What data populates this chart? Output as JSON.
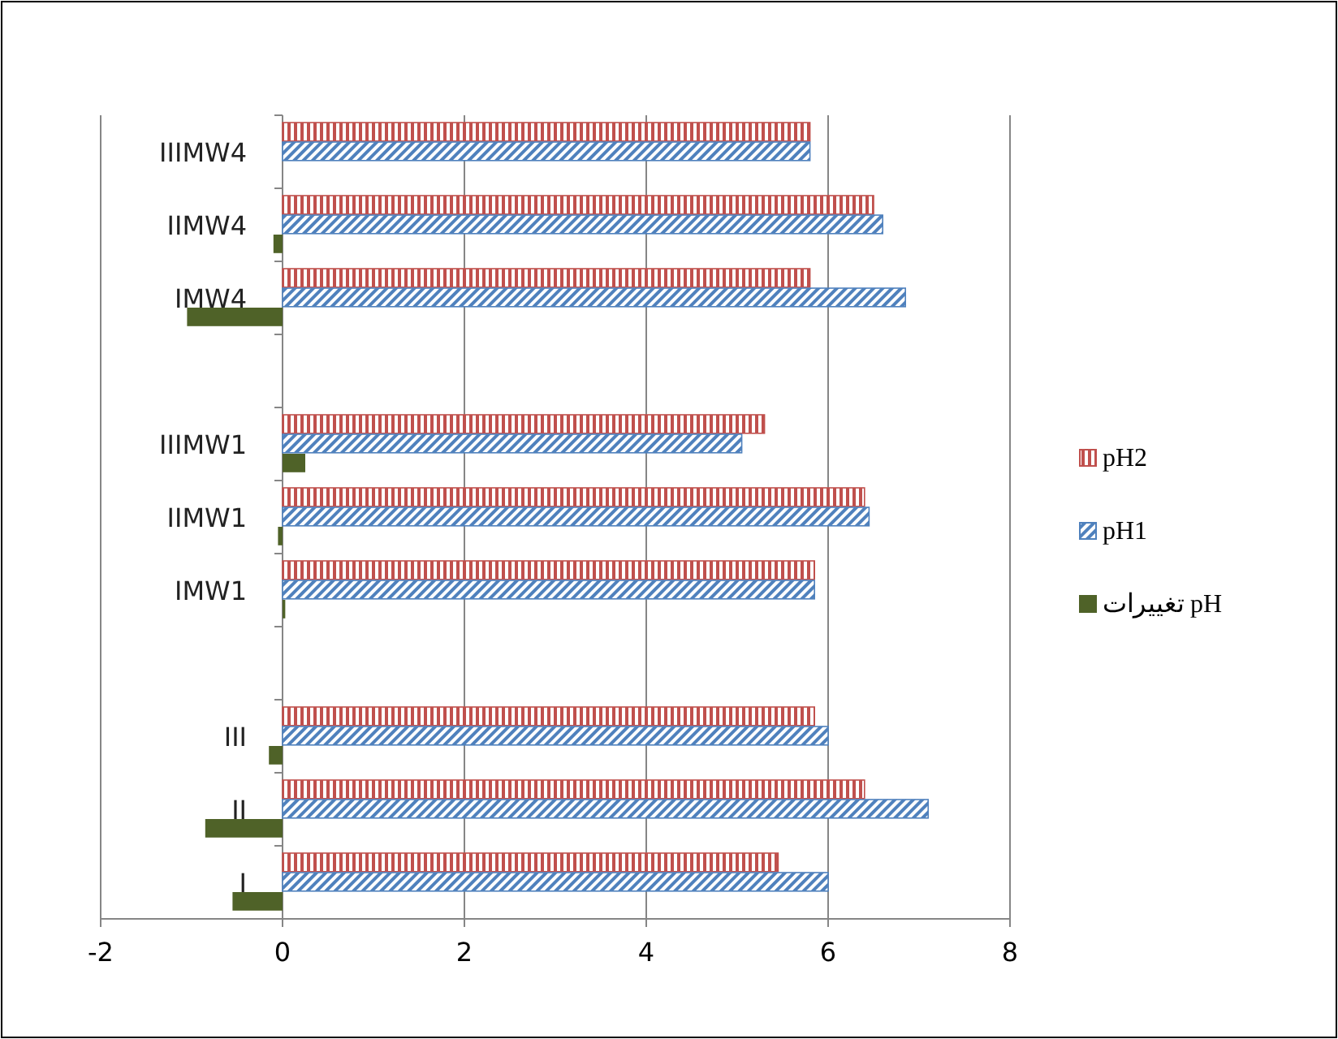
{
  "chart_data": {
    "type": "bar",
    "orientation": "horizontal",
    "categories": [
      "IIIMW4",
      "IIMW4",
      "IMW4",
      null,
      "IIIMW1",
      "IIMW1",
      "IMW1",
      null,
      "III",
      "II",
      "I"
    ],
    "series": [
      {
        "name": "pH2",
        "color": "#c0504d",
        "values": [
          5.8,
          6.5,
          5.8,
          null,
          5.3,
          6.4,
          5.85,
          null,
          5.85,
          6.4,
          5.45
        ]
      },
      {
        "name": "pH1",
        "color": "#4f81bd",
        "values": [
          5.8,
          6.6,
          6.85,
          null,
          5.05,
          6.45,
          5.85,
          null,
          6.0,
          7.1,
          6.0
        ]
      },
      {
        "name": "تغییرات pH",
        "color": "#4f6228",
        "values": [
          0,
          -0.1,
          -1.05,
          null,
          0.25,
          -0.05,
          0.03,
          null,
          -0.15,
          -0.85,
          -0.55
        ]
      }
    ],
    "xlim": [
      -2,
      8
    ],
    "xticks": [
      -2,
      0,
      2,
      4,
      6,
      8
    ],
    "grid": "x",
    "legend": "right"
  }
}
